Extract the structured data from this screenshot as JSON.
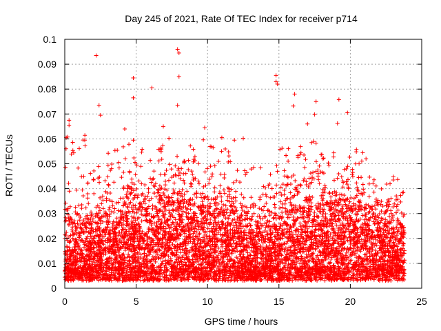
{
  "chart_data": {
    "type": "scatter",
    "title": "Day 245 of 2021, Rate Of TEC Index for receiver p714",
    "xlabel": "GPS time / hours",
    "ylabel": "ROTI / TECUs",
    "xlim": [
      0,
      25
    ],
    "ylim": [
      0,
      0.1
    ],
    "xticks": [
      "0",
      "5",
      "10",
      "15",
      "20",
      "25"
    ],
    "yticks": [
      "0",
      "0.01",
      "0.02",
      "0.03",
      "0.04",
      "0.05",
      "0.06",
      "0.07",
      "0.08",
      "0.09",
      "0.1"
    ],
    "grid": true,
    "marker": "+",
    "series_color": "#ff0000",
    "notable_points": [
      {
        "x": 2.2,
        "y": 0.0935
      },
      {
        "x": 7.9,
        "y": 0.096
      },
      {
        "x": 8.0,
        "y": 0.0945
      },
      {
        "x": 8.0,
        "y": 0.085
      },
      {
        "x": 14.8,
        "y": 0.0855
      },
      {
        "x": 14.8,
        "y": 0.083
      },
      {
        "x": 14.9,
        "y": 0.082
      },
      {
        "x": 4.8,
        "y": 0.0845
      },
      {
        "x": 6.1,
        "y": 0.0805
      },
      {
        "x": 16.1,
        "y": 0.078
      },
      {
        "x": 4.8,
        "y": 0.0765
      },
      {
        "x": 19.2,
        "y": 0.0758
      },
      {
        "x": 17.6,
        "y": 0.075
      },
      {
        "x": 2.4,
        "y": 0.0735
      },
      {
        "x": 7.9,
        "y": 0.0735
      },
      {
        "x": 16.0,
        "y": 0.0732
      },
      {
        "x": 19.8,
        "y": 0.0705
      },
      {
        "x": 2.5,
        "y": 0.0695
      },
      {
        "x": 17.5,
        "y": 0.0698
      },
      {
        "x": 0.3,
        "y": 0.0675
      },
      {
        "x": 0.3,
        "y": 0.0655
      },
      {
        "x": 17.0,
        "y": 0.066
      },
      {
        "x": 19.1,
        "y": 0.0662
      },
      {
        "x": 6.9,
        "y": 0.065
      },
      {
        "x": 9.8,
        "y": 0.0645
      },
      {
        "x": 4.2,
        "y": 0.064
      },
      {
        "x": 0.1,
        "y": 0.0605
      },
      {
        "x": 1.4,
        "y": 0.0595
      },
      {
        "x": 11.0,
        "y": 0.0605
      },
      {
        "x": 12.5,
        "y": 0.0602
      },
      {
        "x": 4.8,
        "y": 0.0595
      },
      {
        "x": 21.1,
        "y": 0.052
      },
      {
        "x": 23.0,
        "y": 0.0435
      }
    ],
    "clusters": [
      {
        "x_from": 0.0,
        "x_to": 1.6,
        "y_base": 0.011,
        "y_spread": 0.022,
        "peak": 0.062
      },
      {
        "x_from": 1.6,
        "x_to": 4.0,
        "y_base": 0.013,
        "y_spread": 0.022,
        "peak": 0.058
      },
      {
        "x_from": 4.0,
        "x_to": 6.5,
        "y_base": 0.015,
        "y_spread": 0.026,
        "peak": 0.058
      },
      {
        "x_from": 6.5,
        "x_to": 9.0,
        "y_base": 0.017,
        "y_spread": 0.028,
        "peak": 0.062
      },
      {
        "x_from": 9.0,
        "x_to": 12.0,
        "y_base": 0.015,
        "y_spread": 0.025,
        "peak": 0.06
      },
      {
        "x_from": 12.0,
        "x_to": 15.0,
        "y_base": 0.012,
        "y_spread": 0.021,
        "peak": 0.05
      },
      {
        "x_from": 15.0,
        "x_to": 18.0,
        "y_base": 0.015,
        "y_spread": 0.026,
        "peak": 0.06
      },
      {
        "x_from": 18.0,
        "x_to": 21.0,
        "y_base": 0.016,
        "y_spread": 0.026,
        "peak": 0.058
      },
      {
        "x_from": 21.0,
        "x_to": 23.8,
        "y_base": 0.013,
        "y_spread": 0.021,
        "peak": 0.045
      }
    ]
  }
}
